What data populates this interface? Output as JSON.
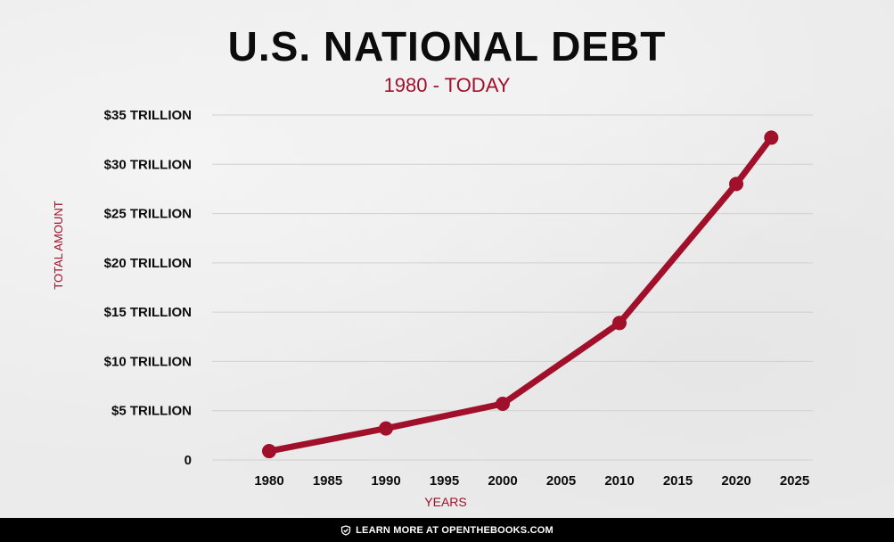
{
  "title": "U.S. NATIONAL DEBT",
  "subtitle": "1980 - TODAY",
  "footer_text": "LEARN MORE AT OPENTHEBOOKS.COM",
  "footer_icon": "check-shield-icon",
  "colors": {
    "line": "#a0102a",
    "title": "#0c0c0c",
    "grid": "#d0d0d0",
    "footer_bg": "#000000"
  },
  "chart_data": {
    "type": "line",
    "title": "U.S. NATIONAL DEBT",
    "subtitle": "1980 - TODAY",
    "xlabel": "YEARS",
    "ylabel": "TOTAL AMOUNT",
    "x_ticks": [
      "1980",
      "1985",
      "1990",
      "1995",
      "2000",
      "2005",
      "2010",
      "2015",
      "2020",
      "2025"
    ],
    "y_ticks": [
      "0",
      "$5 TRILLION",
      "$10 TRILLION",
      "$15 TRILLION",
      "$20 TRILLION",
      "$25 TRILLION",
      "$30 TRILLION",
      "$35 TRILLION"
    ],
    "xlim": [
      1980,
      2025
    ],
    "ylim": [
      0,
      35
    ],
    "y_unit": "trillion dollars",
    "grid": true,
    "series": [
      {
        "x": [
          1980,
          1990,
          2000,
          2010,
          2020,
          2023
        ],
        "y": [
          0.9,
          3.2,
          5.7,
          13.9,
          28.0,
          32.7
        ]
      }
    ]
  }
}
